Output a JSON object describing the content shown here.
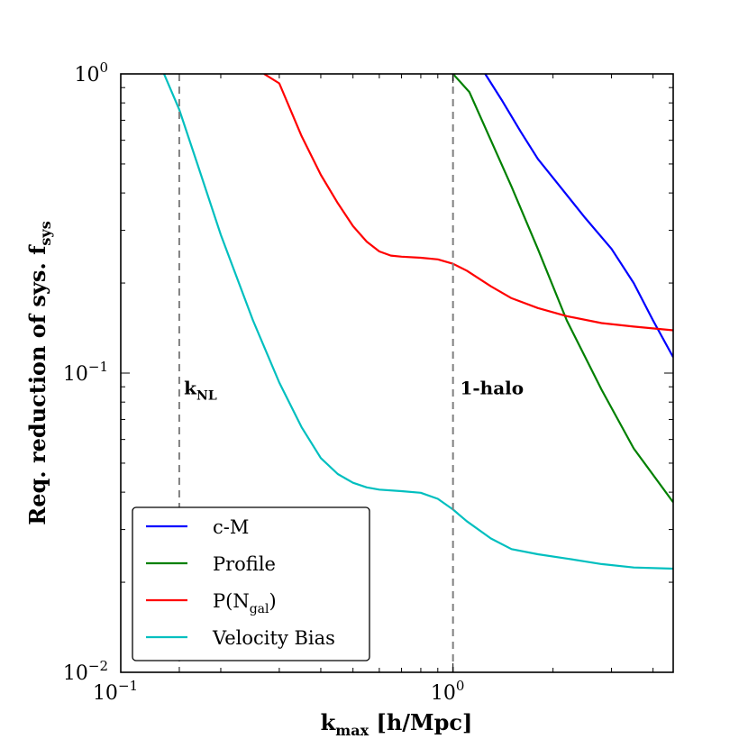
{
  "chart_data": {
    "type": "line",
    "xscale": "log",
    "yscale": "log",
    "xlim": [
      0.1,
      4.6
    ],
    "ylim": [
      0.01,
      1.0
    ],
    "xlabel": {
      "base": "k",
      "sub": "max",
      "rest": " [h/Mpc]"
    },
    "ylabel": {
      "base": "Req. reduction of sys. f",
      "sub": "sys"
    },
    "x_ticks": [
      {
        "value": 0.1,
        "base": "10",
        "exp": "−1"
      },
      {
        "value": 1.0,
        "base": "10",
        "exp": "0"
      }
    ],
    "y_ticks": [
      {
        "value": 0.01,
        "base": "10",
        "exp": "−2"
      },
      {
        "value": 0.1,
        "base": "10",
        "exp": "−1"
      },
      {
        "value": 1.0,
        "base": "10",
        "exp": "0"
      }
    ],
    "vlines": [
      {
        "x": 0.15,
        "color": "#808080",
        "style": "dashed"
      },
      {
        "x": 1.0,
        "color": "#808080",
        "style": "dashed"
      }
    ],
    "annotations": [
      {
        "text_base": "k",
        "text_sub": "NL",
        "x": 0.155,
        "y": 0.085
      },
      {
        "text_base": "1-halo",
        "text_sub": "",
        "x": 1.05,
        "y": 0.085
      }
    ],
    "legend_position": "lower-left",
    "series": [
      {
        "name": "c-M",
        "name_sub": "",
        "name_tail": "",
        "color": "#0000ff",
        "x": [
          1.25,
          1.4,
          1.6,
          1.8,
          2.1,
          2.5,
          3.0,
          3.5,
          4.0,
          4.6
        ],
        "y": [
          1.0,
          0.82,
          0.64,
          0.52,
          0.42,
          0.33,
          0.26,
          0.2,
          0.15,
          0.113
        ]
      },
      {
        "name": "Profile",
        "name_sub": "",
        "name_tail": "",
        "color": "#008000",
        "x": [
          1.0,
          1.12,
          1.3,
          1.5,
          1.8,
          2.2,
          2.8,
          3.5,
          4.6
        ],
        "y": [
          1.0,
          0.87,
          0.6,
          0.42,
          0.26,
          0.15,
          0.088,
          0.056,
          0.037
        ]
      },
      {
        "name": "P(N",
        "name_sub": "gal",
        "name_tail": ")",
        "color": "#ff0000",
        "x": [
          0.27,
          0.3,
          0.35,
          0.4,
          0.45,
          0.5,
          0.55,
          0.6,
          0.65,
          0.7,
          0.8,
          0.9,
          1.0,
          1.1,
          1.3,
          1.5,
          1.8,
          2.2,
          2.8,
          3.5,
          4.6
        ],
        "y": [
          1.0,
          0.93,
          0.62,
          0.46,
          0.37,
          0.31,
          0.275,
          0.255,
          0.247,
          0.245,
          0.243,
          0.24,
          0.232,
          0.22,
          0.195,
          0.178,
          0.165,
          0.155,
          0.147,
          0.143,
          0.139
        ]
      },
      {
        "name": "Velocity Bias",
        "name_sub": "",
        "name_tail": "",
        "color": "#00bfbf",
        "x": [
          0.135,
          0.15,
          0.17,
          0.2,
          0.25,
          0.3,
          0.35,
          0.4,
          0.45,
          0.5,
          0.55,
          0.6,
          0.7,
          0.8,
          0.9,
          1.0,
          1.1,
          1.3,
          1.5,
          1.8,
          2.2,
          2.8,
          3.5,
          4.6
        ],
        "y": [
          1.0,
          0.76,
          0.5,
          0.29,
          0.15,
          0.093,
          0.066,
          0.052,
          0.046,
          0.043,
          0.0415,
          0.0408,
          0.0403,
          0.0398,
          0.038,
          0.035,
          0.032,
          0.028,
          0.0258,
          0.0248,
          0.024,
          0.023,
          0.0224,
          0.0222
        ]
      }
    ]
  }
}
